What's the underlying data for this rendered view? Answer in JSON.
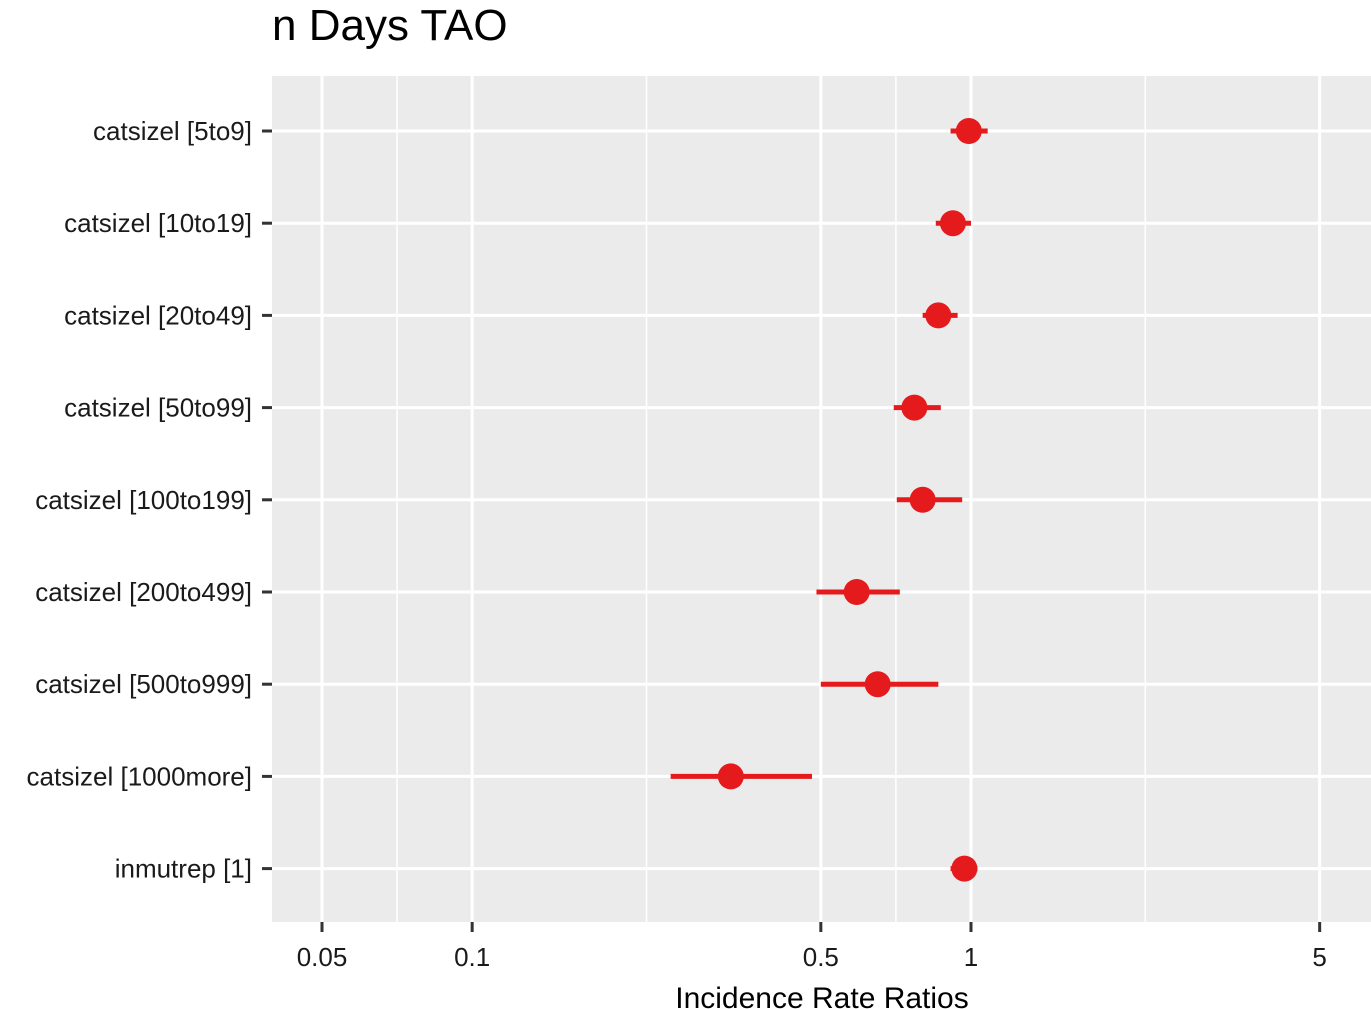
{
  "chart_data": {
    "type": "scatter",
    "title": "n Days TAO",
    "xlabel": "Incidence Rate Ratios",
    "ylabel": "",
    "x_scale": "log",
    "xlim": [
      0.038,
      5.5
    ],
    "x_ticks": [
      {
        "value": 0.05,
        "label": "0.05"
      },
      {
        "value": 0.1,
        "label": "0.1"
      },
      {
        "value": 0.5,
        "label": "0.5"
      },
      {
        "value": 1,
        "label": "1"
      },
      {
        "value": 5,
        "label": "5"
      }
    ],
    "x_minor_ticks": [
      0.0707,
      0.2236,
      0.7071,
      2.2361
    ],
    "grid": true,
    "colors": {
      "panel_background": "#ebebeb",
      "grid": "#ffffff",
      "point": "#e41a1c",
      "tick": "#333333"
    },
    "categories": [
      "catsizel [5to9]",
      "catsizel [10to19]",
      "catsizel [20to49]",
      "catsizel [50to99]",
      "catsizel [100to199]",
      "catsizel [200to499]",
      "catsizel [500to999]",
      "catsizel [1000more]",
      "inmutrep [1]"
    ],
    "series": [
      {
        "estimate": [
          0.99,
          0.92,
          0.86,
          0.77,
          0.8,
          0.59,
          0.65,
          0.33,
          0.97
        ],
        "conf_low": [
          0.91,
          0.85,
          0.8,
          0.7,
          0.71,
          0.49,
          0.5,
          0.25,
          0.91
        ],
        "conf_high": [
          1.08,
          1.0,
          0.94,
          0.87,
          0.96,
          0.72,
          0.86,
          0.48,
          1.03
        ]
      }
    ]
  }
}
